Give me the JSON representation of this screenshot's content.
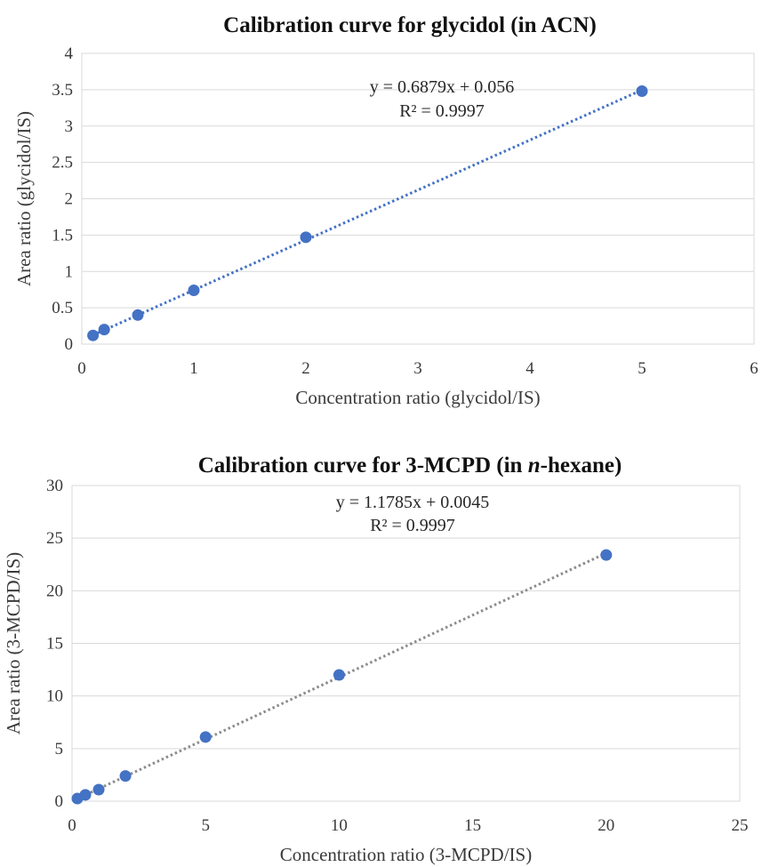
{
  "chart_data": [
    {
      "type": "scatter",
      "title": "Calibration curve for glycidol (in ACN)",
      "title_parts": [
        {
          "text": "Calibration curve for glycidol (in ACN)",
          "italic": false
        }
      ],
      "xlabel": "Concentration ratio (glycidol/IS)",
      "ylabel": "Area ratio (glycidol/IS)",
      "xlim": [
        0,
        6
      ],
      "ylim": [
        0,
        4
      ],
      "xticks": [
        0,
        1,
        2,
        3,
        4,
        5,
        6
      ],
      "yticks": [
        0,
        0.5,
        1,
        1.5,
        2,
        2.5,
        3,
        3.5,
        4
      ],
      "grid": "horizontal",
      "legend": "none",
      "marker_color": "#4472c4",
      "trend_color": "#4472c4",
      "series": [
        {
          "x": [
            0.1,
            0.2,
            0.5,
            1,
            2,
            5
          ],
          "y": [
            0.12,
            0.2,
            0.4,
            0.74,
            1.47,
            3.48
          ]
        }
      ],
      "trendline": {
        "slope": 0.6879,
        "intercept": 0.056,
        "x_range": [
          0.1,
          5
        ]
      },
      "annotations": [
        "y = 0.6879x + 0.056",
        "R² = 0.9997"
      ]
    },
    {
      "type": "scatter",
      "title": "Calibration curve for 3-MCPD (in n-hexane)",
      "title_parts": [
        {
          "text": "Calibration curve for 3-MCPD (in ",
          "italic": false
        },
        {
          "text": "n",
          "italic": true
        },
        {
          "text": "-hexane)",
          "italic": false
        }
      ],
      "xlabel": "Concentration ratio (3-MCPD/IS)",
      "ylabel": "Area ratio (3-MCPD/IS)",
      "xlim": [
        0,
        25
      ],
      "ylim": [
        0,
        30
      ],
      "xticks": [
        0,
        5,
        10,
        15,
        20,
        25
      ],
      "yticks": [
        0,
        5,
        10,
        15,
        20,
        25,
        30
      ],
      "grid": "horizontal",
      "legend": "none",
      "marker_color": "#4472c4",
      "trend_color": "#8c8c8c",
      "series": [
        {
          "x": [
            0.2,
            0.5,
            1,
            2,
            5,
            10,
            20
          ],
          "y": [
            0.25,
            0.6,
            1.1,
            2.4,
            6.1,
            12.0,
            23.4
          ]
        }
      ],
      "trendline": {
        "slope": 1.1785,
        "intercept": 0.0045,
        "x_range": [
          0.2,
          20
        ]
      },
      "annotations": [
        "y = 1.1785x + 0.0045",
        "R² = 0.9997"
      ]
    }
  ]
}
